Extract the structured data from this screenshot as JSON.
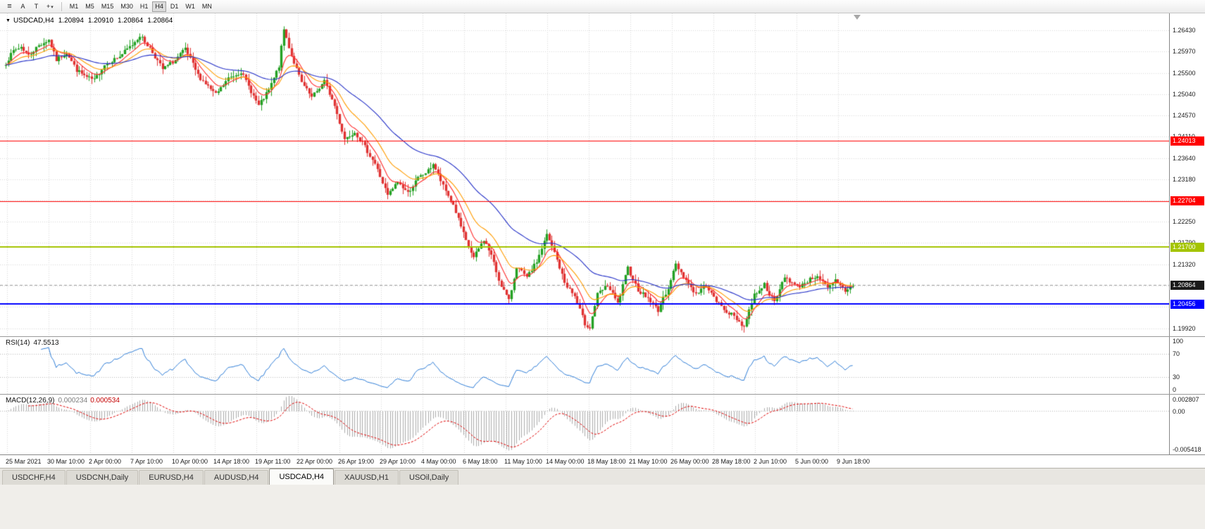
{
  "toolbar": {
    "icons": {
      "menu": "≡",
      "draw": "+",
      "draw_caret": "▾"
    },
    "buttons": [
      "A",
      "T"
    ],
    "timeframes": [
      "M1",
      "M5",
      "M15",
      "M30",
      "H1",
      "H4",
      "D1",
      "W1",
      "MN"
    ],
    "active_timeframe": "H4"
  },
  "header": {
    "window_marker": "▼",
    "title": "USDCAD,H4",
    "open": "1.20894",
    "high": "1.20910",
    "low": "1.20864",
    "close": "1.20864"
  },
  "rsi_panel": {
    "label": "RSI(14)",
    "value": "47.5513",
    "axis": [
      "100",
      "70",
      "30",
      "0"
    ]
  },
  "macd_panel": {
    "label": "MACD(12,26,9)",
    "value_main": "0.000234",
    "value_signal": "0.000534",
    "axis_top": "0.002807",
    "axis_zero": "0.00",
    "axis_bottom": "-0.005418"
  },
  "tabs": {
    "items": [
      "USDCHF,H4",
      "USDCNH,Daily",
      "EURUSD,H4",
      "AUDUSD,H4",
      "USDCAD,H4",
      "XAUUSD,H1",
      "USOil,Daily"
    ],
    "active_index": 4
  },
  "chart_data": {
    "type": "candlestick",
    "symbol": "USDCAD",
    "timeframe": "H4",
    "title": "USDCAD,H4",
    "current_ohlc": {
      "open": 1.20894,
      "high": 1.2091,
      "low": 1.20864,
      "close": 1.20864
    },
    "y_axis": {
      "range": {
        "top": 1.268,
        "bottom": 1.1975
      },
      "ticks": [
        "1.26430",
        "1.25970",
        "1.25500",
        "1.25040",
        "1.24570",
        "1.24110",
        "1.23640",
        "1.23180",
        "1.22710",
        "1.22250",
        "1.21790",
        "1.21320",
        "1.20860",
        "1.20390",
        "1.19920"
      ]
    },
    "x_axis": {
      "labels": [
        "25 Mar 2021",
        "30 Mar 10:00",
        "2 Apr 00:00",
        "7 Apr 10:00",
        "10 Apr 00:00",
        "14 Apr 18:00",
        "19 Apr 11:00",
        "22 Apr 00:00",
        "26 Apr 19:00",
        "29 Apr 10:00",
        "4 May 00:00",
        "6 May 18:00",
        "11 May 10:00",
        "14 May 00:00",
        "18 May 18:00",
        "21 May 10:00",
        "26 May 00:00",
        "28 May 18:00",
        "2 Jun 10:00",
        "5 Jun 00:00",
        "9 Jun 18:00"
      ]
    },
    "horizontal_lines": [
      {
        "price": 1.24013,
        "label": "1.24013",
        "color": "#FF0000",
        "width": 1
      },
      {
        "price": 1.22704,
        "label": "1.22704",
        "color": "#FF0000",
        "width": 1
      },
      {
        "price": 1.217,
        "label": "1.21700",
        "color": "#A4C400",
        "width": 2
      },
      {
        "price": 1.20456,
        "label": "1.20456",
        "color": "#0000FF",
        "width": 2
      }
    ],
    "last_price": {
      "price": 1.20864,
      "label": "1.20864",
      "flag_color": "#1a1a1a"
    },
    "candle_count": 336,
    "price_path": [
      [
        0,
        1.2572
      ],
      [
        3,
        1.2598
      ],
      [
        6,
        1.2607
      ],
      [
        9,
        1.2588
      ],
      [
        13,
        1.261
      ],
      [
        17,
        1.2622
      ],
      [
        20,
        1.2578
      ],
      [
        24,
        1.2595
      ],
      [
        28,
        1.2556
      ],
      [
        32,
        1.254
      ],
      [
        35,
        1.2534
      ],
      [
        39,
        1.2568
      ],
      [
        45,
        1.2586
      ],
      [
        50,
        1.2612
      ],
      [
        53,
        1.2632
      ],
      [
        57,
        1.2604
      ],
      [
        62,
        1.2558
      ],
      [
        67,
        1.2578
      ],
      [
        71,
        1.2602
      ],
      [
        76,
        1.2545
      ],
      [
        83,
        1.2502
      ],
      [
        88,
        1.2538
      ],
      [
        93,
        1.2553
      ],
      [
        100,
        1.2478
      ],
      [
        104,
        1.2512
      ],
      [
        108,
        1.2565
      ],
      [
        110,
        1.2645
      ],
      [
        113,
        1.2588
      ],
      [
        117,
        1.2528
      ],
      [
        121,
        1.2496
      ],
      [
        126,
        1.2532
      ],
      [
        130,
        1.2478
      ],
      [
        134,
        1.2406
      ],
      [
        138,
        1.2422
      ],
      [
        142,
        1.2388
      ],
      [
        146,
        1.2352
      ],
      [
        151,
        1.2282
      ],
      [
        155,
        1.2312
      ],
      [
        159,
        1.2288
      ],
      [
        163,
        1.232
      ],
      [
        167,
        1.2336
      ],
      [
        169,
        1.2352
      ],
      [
        173,
        1.2302
      ],
      [
        177,
        1.2262
      ],
      [
        182,
        1.2182
      ],
      [
        185,
        1.2146
      ],
      [
        189,
        1.2186
      ],
      [
        192,
        1.2152
      ],
      [
        195,
        1.2098
      ],
      [
        199,
        1.2052
      ],
      [
        202,
        1.2128
      ],
      [
        206,
        1.2102
      ],
      [
        210,
        1.2138
      ],
      [
        214,
        1.2196
      ],
      [
        217,
        1.2158
      ],
      [
        221,
        1.2092
      ],
      [
        225,
        1.2062
      ],
      [
        229,
        1.2002
      ],
      [
        231,
        1.1994
      ],
      [
        234,
        1.2066
      ],
      [
        238,
        1.2086
      ],
      [
        242,
        1.2046
      ],
      [
        246,
        1.2124
      ],
      [
        250,
        1.2076
      ],
      [
        254,
        1.2058
      ],
      [
        258,
        1.2032
      ],
      [
        262,
        1.2082
      ],
      [
        265,
        1.2132
      ],
      [
        269,
        1.2098
      ],
      [
        273,
        1.2066
      ],
      [
        277,
        1.2088
      ],
      [
        280,
        1.2058
      ],
      [
        284,
        1.2034
      ],
      [
        288,
        1.2018
      ],
      [
        292,
        1.1996
      ],
      [
        296,
        1.2066
      ],
      [
        300,
        1.2088
      ],
      [
        304,
        1.2048
      ],
      [
        308,
        1.2106
      ],
      [
        313,
        1.2082
      ],
      [
        317,
        1.2096
      ],
      [
        321,
        1.2108
      ],
      [
        325,
        1.2078
      ],
      [
        328,
        1.2096
      ],
      [
        332,
        1.2074
      ],
      [
        335,
        1.2086
      ]
    ],
    "moving_averages": [
      {
        "period": 8,
        "color": "#FF2E2E"
      },
      {
        "period": 17,
        "color": "#FF9C00"
      },
      {
        "period": 45,
        "color": "#2430C8"
      }
    ],
    "indicators": {
      "rsi": {
        "name": "RSI",
        "period": 14,
        "current": 47.5513,
        "levels": [
          70,
          30
        ],
        "scale": [
          0,
          100
        ],
        "color": "#2F7ED8"
      },
      "macd": {
        "name": "MACD",
        "params": [
          12,
          26,
          9
        ],
        "values": [
          0.000234,
          0.000534
        ],
        "axis_max": 0.002807,
        "axis_min": -0.005418,
        "histogram_color": "#ABABAB",
        "signal_color": "#E00000"
      }
    },
    "style": {
      "bull": "#23A123",
      "bear": "#E03232",
      "grid": "#D9D9D9",
      "background": "#FFFFFF",
      "bid_line": "#A0A0A0"
    }
  }
}
